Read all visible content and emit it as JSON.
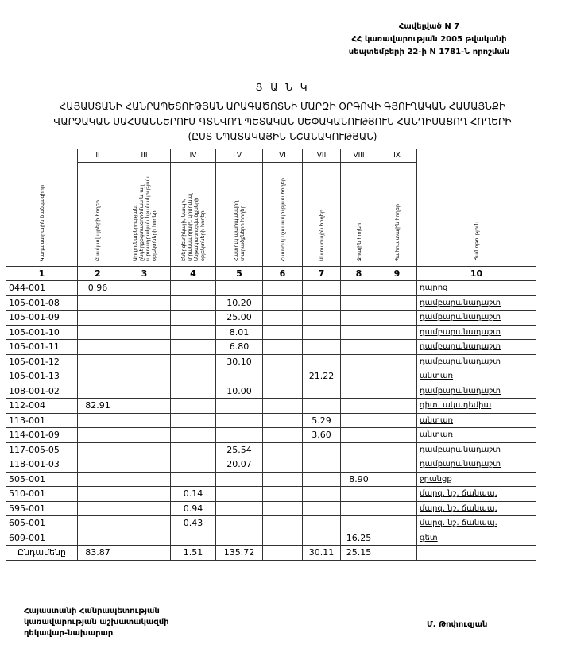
{
  "annex": {
    "line1": "Հավելված N 7",
    "line2": "ՀՀ կառավարության 2005 թվականի",
    "line3": "սեպտեմբերի 22-ի N 1781-Ն որոշման"
  },
  "title": "Ց Ա Ն Կ",
  "heading": {
    "line1": "ՀԱՅԱՍՏԱՆԻ ՀԱՆՐԱՊԵՏՈՒԹՅԱՆ ԱՐԱԳԱԾՈՏՆԻ ՄԱՐԶԻ ՕՐԳՈՎԻ ԳՅՈՒՂԱԿԱՆ ՀԱՄԱՅՆՔԻ",
    "line2": "ՎԱՐՉԱԿԱՆ ՍԱՀՄԱՆՆԵՐՈՒՄ ԳՏՆՎՈՂ ՊԵՏԱԿԱՆ ՍԵՓԱԿԱՆՈՒԹՅՈՒՆ ՀԱՆԴԻՍԱՑՈՂ ՀՈՂԵՐԻ",
    "line3": "(ԸՍՏ ՆՊԱՏԱԿԱՅԻՆ ՆՇԱՆԱԿՈՒԹՅԱՆ)"
  },
  "table": {
    "roman": [
      "II",
      "III",
      "IV",
      "V",
      "VI",
      "VII",
      "VIII",
      "IX"
    ],
    "headers": [
      "Կադաստրային ծածկագիրը",
      "Բնակավայրերի հողեր",
      "Արդյունաբերության, ընդերքօգտագործման և այլ արտադրական նշանակության օբյեկտների հողեր",
      "Էներգետիկայի, կապի, տրանսպորտի, կոմունալ ենթակառուցվածքների օբյեկտների հողեր",
      "Հատուկ պահպանվող տարածքների հողեր",
      "Հատուկ նշանակության հողեր",
      "Անտառային հողեր",
      "Ջրային հողեր",
      "Պահուստային հողեր",
      "Ծանոթություն"
    ],
    "numbers": [
      "1",
      "2",
      "3",
      "4",
      "5",
      "6",
      "7",
      "8",
      "9",
      "10"
    ],
    "rows": [
      [
        "044-001",
        "0.96",
        "",
        "",
        "",
        "",
        "",
        "",
        "",
        "դպրոց"
      ],
      [
        "105-001-08",
        "",
        "",
        "",
        "10.20",
        "",
        "",
        "",
        "",
        "դամբարանադաշտ"
      ],
      [
        "105-001-09",
        "",
        "",
        "",
        "25.00",
        "",
        "",
        "",
        "",
        "դամբարանադաշտ"
      ],
      [
        "105-001-10",
        "",
        "",
        "",
        "8.01",
        "",
        "",
        "",
        "",
        "դամբարանադաշտ"
      ],
      [
        "105-001-11",
        "",
        "",
        "",
        "6.80",
        "",
        "",
        "",
        "",
        "դամբարանադաշտ"
      ],
      [
        "105-001-12",
        "",
        "",
        "",
        "30.10",
        "",
        "",
        "",
        "",
        "դամբարանադաշտ"
      ],
      [
        "105-001-13",
        "",
        "",
        "",
        "",
        "",
        "21.22",
        "",
        "",
        "անտառ"
      ],
      [
        "108-001-02",
        "",
        "",
        "",
        "10.00",
        "",
        "",
        "",
        "",
        "դամբարանադաշտ"
      ],
      [
        "112-004",
        "82.91",
        "",
        "",
        "",
        "",
        "",
        "",
        "",
        "գիտ. ակադեմիա"
      ],
      [
        "113-001",
        "",
        "",
        "",
        "",
        "",
        "5.29",
        "",
        "",
        "անտառ"
      ],
      [
        "114-001-09",
        "",
        "",
        "",
        "",
        "",
        "3.60",
        "",
        "",
        "անտառ"
      ],
      [
        "117-005-05",
        "",
        "",
        "",
        "25.54",
        "",
        "",
        "",
        "",
        "դամբարանադաշտ"
      ],
      [
        "118-001-03",
        "",
        "",
        "",
        "20.07",
        "",
        "",
        "",
        "",
        "դամբարանադաշտ"
      ],
      [
        "505-001",
        "",
        "",
        "",
        "",
        "",
        "",
        "8.90",
        "",
        "ջրանցք"
      ],
      [
        "510-001",
        "",
        "",
        "0.14",
        "",
        "",
        "",
        "",
        "",
        "մարզ. նշ. ճանապ."
      ],
      [
        "595-001",
        "",
        "",
        "0.94",
        "",
        "",
        "",
        "",
        "",
        "մարզ. նշ. ճանապ."
      ],
      [
        "605-001",
        "",
        "",
        "0.43",
        "",
        "",
        "",
        "",
        "",
        "մարզ. նշ. ճանապ."
      ],
      [
        "609-001",
        "",
        "",
        "",
        "",
        "",
        "",
        "16.25",
        "",
        "գետ"
      ]
    ],
    "total": [
      "Ընդամենը",
      "83.87",
      "",
      "1.51",
      "135.72",
      "",
      "30.11",
      "25.15",
      "",
      ""
    ]
  },
  "signature": {
    "line1": "Հայաստանի Հանրապետության",
    "line2": "կառավարության աշխատակազմի",
    "line3": "ղեկավար-նախարար",
    "name": "Մ. Թոփուզյան"
  }
}
